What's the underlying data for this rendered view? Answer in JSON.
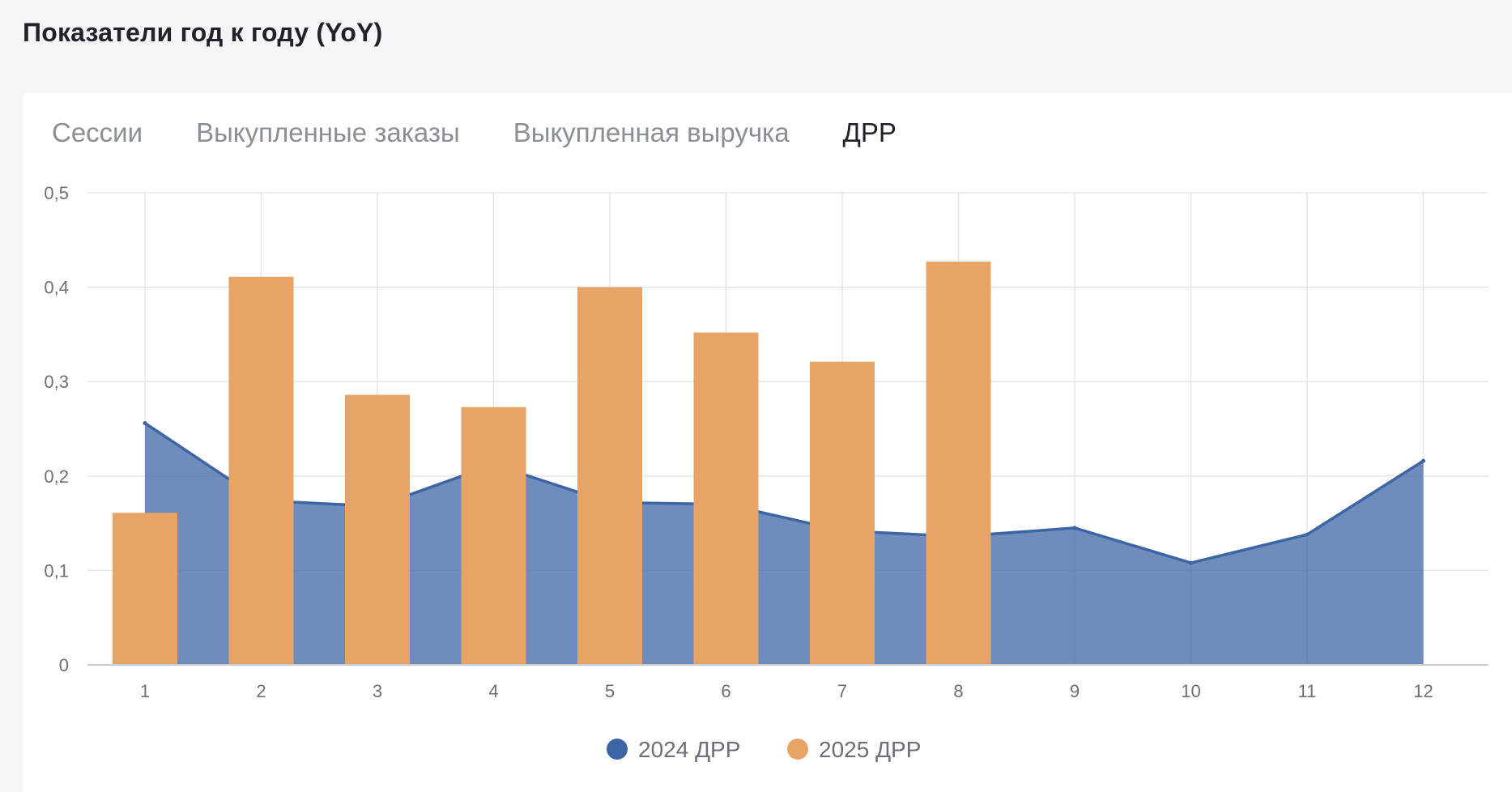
{
  "header": {
    "title": "Показатели год к году (YoY)"
  },
  "tabs": [
    {
      "label": "Сессии",
      "active": false
    },
    {
      "label": "Выкупленные заказы",
      "active": false
    },
    {
      "label": "Выкупленная выручка",
      "active": false
    },
    {
      "label": "ДРР",
      "active": true
    }
  ],
  "chart_data": {
    "type": "bar",
    "categories": [
      "1",
      "2",
      "3",
      "4",
      "5",
      "6",
      "7",
      "8",
      "9",
      "10",
      "11",
      "12"
    ],
    "ylim": [
      0,
      0.5
    ],
    "yticks": [
      0,
      0.1,
      0.2,
      0.3,
      0.4,
      0.5
    ],
    "ytick_labels": [
      "0",
      "0,1",
      "0,2",
      "0,3",
      "0,4",
      "0,5"
    ],
    "grid": true,
    "legend_position": "bottom-center",
    "series": [
      {
        "name": "2024 ДРР",
        "render": "area",
        "color": "#3d65a5",
        "values": [
          0.256,
          0.174,
          0.168,
          0.212,
          0.172,
          0.17,
          0.142,
          0.136,
          0.145,
          0.108,
          0.138,
          0.216
        ]
      },
      {
        "name": "2025 ДРР",
        "render": "bar",
        "color": "#e8a466",
        "values": [
          0.161,
          0.411,
          0.286,
          0.273,
          0.4,
          0.352,
          0.321,
          0.427,
          null,
          null,
          null,
          null
        ]
      }
    ]
  }
}
